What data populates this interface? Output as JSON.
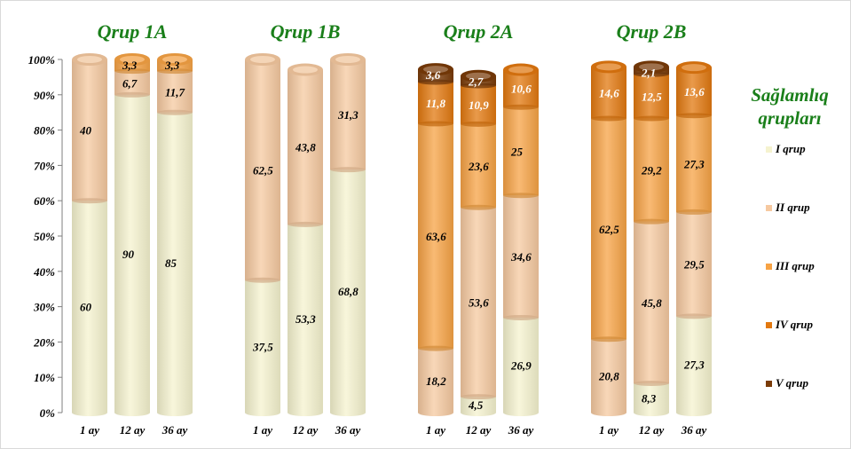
{
  "chart_data": {
    "type": "bar",
    "stacked": true,
    "percent_stacked": true,
    "groups": [
      {
        "title": "Qrup 1A",
        "bars": [
          {
            "category": "1 ay",
            "values": [
              60,
              40,
              null,
              null,
              null
            ],
            "labels": [
              "60",
              "40",
              "",
              "",
              ""
            ]
          },
          {
            "category": "12 ay",
            "values": [
              90,
              6.7,
              3.3,
              null,
              null
            ],
            "labels": [
              "90",
              "6,7",
              "3,3",
              "",
              ""
            ]
          },
          {
            "category": "36 ay",
            "values": [
              85,
              11.7,
              3.3,
              null,
              null
            ],
            "labels": [
              "85",
              "11,7",
              "3,3",
              "",
              ""
            ]
          }
        ]
      },
      {
        "title": "Qrup 1B",
        "bars": [
          {
            "category": "1 ay",
            "values": [
              37.5,
              62.5,
              null,
              null,
              null
            ],
            "labels": [
              "37,5",
              "62,5",
              "",
              "",
              ""
            ]
          },
          {
            "category": "12 ay",
            "values": [
              53.3,
              43.8,
              null,
              null,
              null
            ],
            "labels": [
              "53,3",
              "43,8",
              "",
              "",
              ""
            ]
          },
          {
            "category": "36 ay",
            "values": [
              68.8,
              31.3,
              null,
              null,
              null
            ],
            "labels": [
              "68,8",
              "31,3",
              "",
              "",
              ""
            ]
          }
        ]
      },
      {
        "title": "Qrup 2A",
        "bars": [
          {
            "category": "1 ay",
            "values": [
              null,
              18.2,
              63.6,
              11.8,
              3.6
            ],
            "labels": [
              "",
              "18,2",
              "63,6",
              "11,8",
              "3,6"
            ]
          },
          {
            "category": "12 ay",
            "values": [
              4.5,
              53.6,
              23.6,
              10.9,
              2.7
            ],
            "labels": [
              "4,5",
              "53,6",
              "23,6",
              "10,9",
              "2,7"
            ]
          },
          {
            "category": "36 ay",
            "values": [
              26.9,
              34.6,
              25,
              10.6,
              null
            ],
            "labels": [
              "26,9",
              "34,6",
              "25",
              "10,6",
              ""
            ]
          }
        ]
      },
      {
        "title": "Qrup 2B",
        "bars": [
          {
            "category": "1 ay",
            "values": [
              null,
              20.8,
              62.5,
              14.6,
              null
            ],
            "labels": [
              "",
              "20,8",
              "62,5",
              "14,6",
              ""
            ]
          },
          {
            "category": "12 ay",
            "values": [
              8.3,
              45.8,
              29.2,
              12.5,
              2.1
            ],
            "labels": [
              "8,3",
              "45,8",
              "29,2",
              "12,5",
              "2,1"
            ]
          },
          {
            "category": "36 ay",
            "values": [
              27.3,
              29.5,
              27.3,
              13.6,
              null
            ],
            "labels": [
              "27,3",
              "29,5",
              "27,3",
              "13,6",
              ""
            ]
          }
        ]
      }
    ],
    "series": [
      {
        "name": "I qrup",
        "color": "#f5f3cf"
      },
      {
        "name": "II qrup",
        "color": "#f6c9a0"
      },
      {
        "name": "III qrup",
        "color": "#f7a345"
      },
      {
        "name": "IV qrup",
        "color": "#e2780f"
      },
      {
        "name": "V qrup",
        "color": "#7a3b08"
      }
    ],
    "y_ticks": [
      "0%",
      "10%",
      "20%",
      "30%",
      "40%",
      "50%",
      "60%",
      "70%",
      "80%",
      "90%",
      "100%"
    ],
    "ylim": [
      0,
      100
    ],
    "grid": false,
    "legend_title": "Sağlamlıq qrupları",
    "legend_title_lines": [
      "Sağlamlıq",
      "qrupları"
    ],
    "legend_position": "right"
  }
}
